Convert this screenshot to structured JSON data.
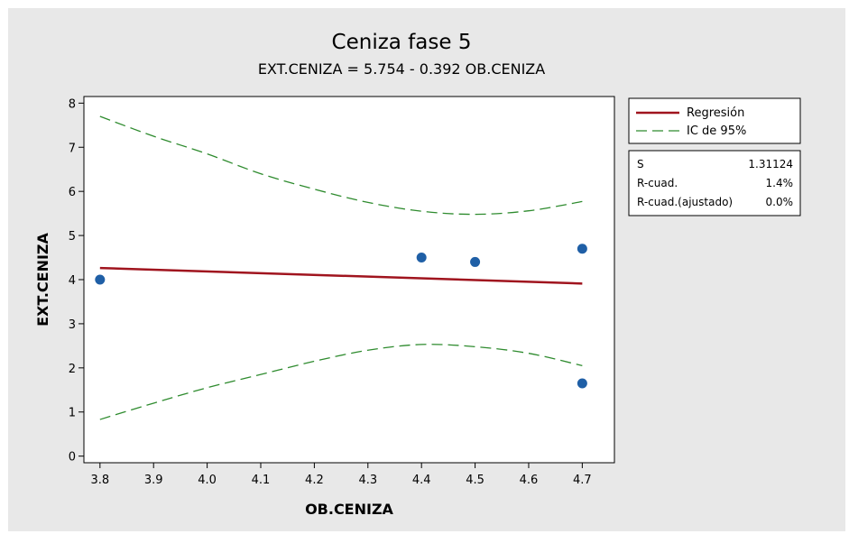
{
  "chart_data": {
    "type": "scatter",
    "title": "Ceniza fase 5",
    "subtitle": "EXT.CENIZA = 5.754 - 0.392 OB.CENIZA",
    "xlabel": "OB.CENIZA",
    "ylabel": "EXT.CENIZA",
    "xlim": [
      3.77,
      4.76
    ],
    "ylim": [
      -0.15,
      8.15
    ],
    "xticks": [
      3.8,
      3.9,
      4.0,
      4.1,
      4.2,
      4.3,
      4.4,
      4.5,
      4.6,
      4.7
    ],
    "yticks": [
      0,
      1,
      2,
      3,
      4,
      5,
      6,
      7,
      8
    ],
    "grid": false,
    "legend_position": "right",
    "points": {
      "x": [
        3.8,
        4.4,
        4.5,
        4.7,
        4.7
      ],
      "y": [
        4.0,
        4.5,
        4.4,
        4.7,
        1.65
      ]
    },
    "regression": {
      "intercept": 5.754,
      "slope": -0.392,
      "x_range": [
        3.8,
        4.7
      ]
    },
    "ci_upper": {
      "x": [
        3.8,
        3.9,
        4.0,
        4.1,
        4.2,
        4.3,
        4.4,
        4.5,
        4.6,
        4.7
      ],
      "y": [
        7.7,
        7.25,
        6.85,
        6.4,
        6.05,
        5.75,
        5.55,
        5.48,
        5.56,
        5.77
      ]
    },
    "ci_lower": {
      "x": [
        3.8,
        3.9,
        4.0,
        4.1,
        4.2,
        4.3,
        4.4,
        4.5,
        4.6,
        4.7
      ],
      "y": [
        0.83,
        1.2,
        1.55,
        1.85,
        2.15,
        2.4,
        2.53,
        2.48,
        2.33,
        2.05
      ]
    },
    "legend": [
      {
        "label": "Regresión",
        "style": "solid",
        "color": "#a0141e"
      },
      {
        "label": "IC de 95%",
        "style": "dashed",
        "color": "#2e8b2e"
      }
    ],
    "stats": [
      {
        "label": "S",
        "value": "1.31124"
      },
      {
        "label": "R-cuad.",
        "value": "1.4%"
      },
      {
        "label": "R-cuad.(ajustado)",
        "value": "0.0%"
      }
    ],
    "colors": {
      "points": "#1f5fa6",
      "regression": "#a0141e",
      "ci": "#2e8b2e"
    }
  }
}
